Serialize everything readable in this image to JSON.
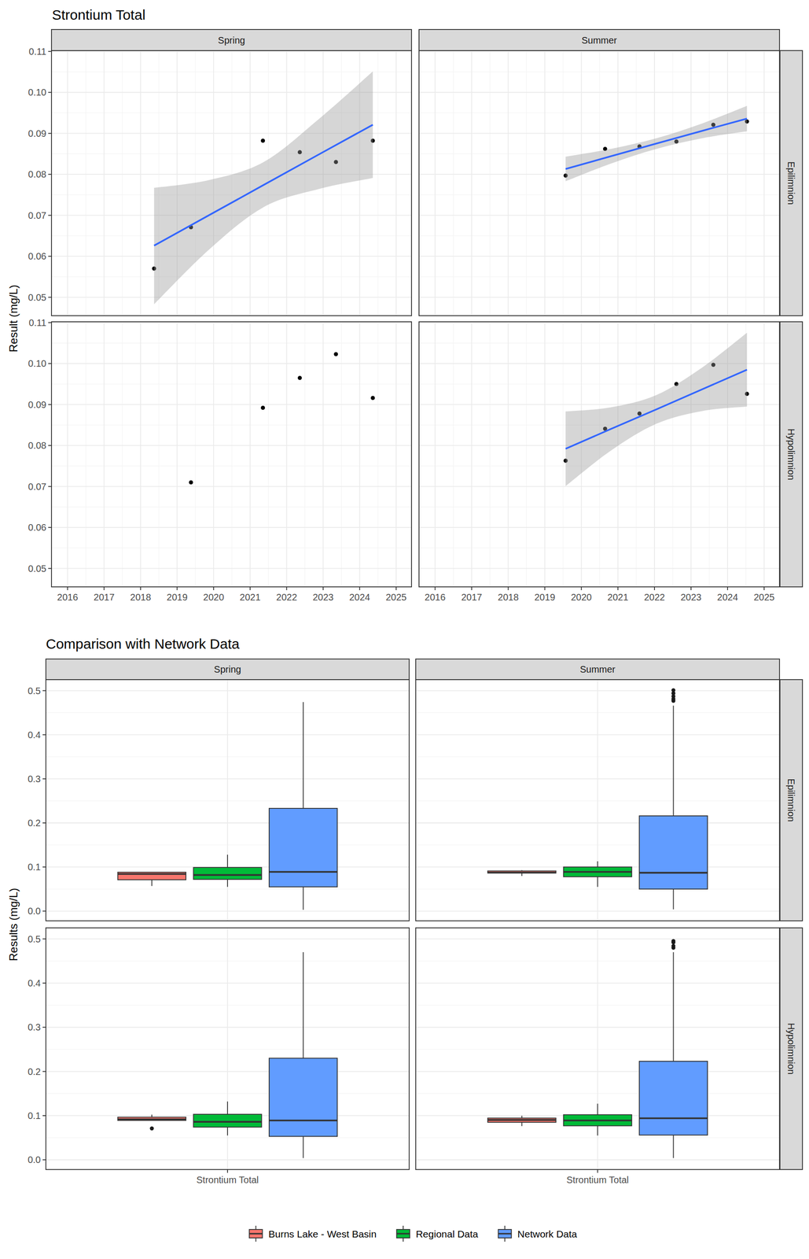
{
  "chart_data": [
    {
      "type": "scatter",
      "title": "Strontium Total",
      "y_label": "Result (mg/L)",
      "columns": [
        "Spring",
        "Summer"
      ],
      "rows": [
        "Epilimnion",
        "Hypolimnion"
      ],
      "xlim": [
        2015.56,
        2025.42
      ],
      "xticks": [
        2016,
        2017,
        2018,
        2019,
        2020,
        2021,
        2022,
        2023,
        2024,
        2025
      ],
      "ylim": [
        0.0455,
        0.1102
      ],
      "yticks": [
        0.05,
        0.06,
        0.07,
        0.08,
        0.09,
        {
          "value": 0.1,
          "label": "0.10"
        },
        0.11
      ],
      "grid": true,
      "color": "#000000",
      "marker": "circle",
      "panels": [
        [
          {
            "x": [
              2018.37,
              2019.38,
              2021.35,
              2022.36,
              2023.35,
              2024.36
            ],
            "values": [
              0.057,
              0.0671,
              0.0882,
              0.0854,
              0.083,
              0.0882
            ],
            "fit": {
              "color": "#3366FF",
              "x": [
                2018.37,
                2019.87,
                2021.37,
                2022.87,
                2024.36
              ],
              "values": [
                0.0626,
                0.07,
                0.0774,
                0.0848,
                0.0921
              ],
              "lower": [
                0.0483,
                0.0616,
                0.072,
                0.0764,
                0.0791
              ],
              "upper": [
                0.0767,
                0.0786,
                0.083,
                0.0934,
                0.1051
              ]
            }
          },
          {
            "x": [
              2019.57,
              2020.65,
              2021.59,
              2022.6,
              2023.61,
              2024.53
            ],
            "values": [
              0.0797,
              0.0862,
              0.0868,
              0.088,
              0.0921,
              0.0929
            ],
            "fit": {
              "color": "#3366FF",
              "x": [
                2019.57,
                2020.8,
                2022.05,
                2023.3,
                2024.53
              ],
              "values": [
                0.0813,
                0.0844,
                0.0875,
                0.0906,
                0.0936
              ],
              "lower": [
                0.0783,
                0.0826,
                0.0862,
                0.0888,
                0.0905
              ],
              "upper": [
                0.0843,
                0.0862,
                0.0888,
                0.0924,
                0.0967
              ]
            }
          }
        ],
        [
          {
            "x": [
              2019.38,
              2021.35,
              2022.36,
              2023.35,
              2024.36
            ],
            "values": [
              0.071,
              0.0892,
              0.0965,
              0.1023,
              0.0916
            ]
          },
          {
            "x": [
              2019.57,
              2020.65,
              2021.59,
              2022.6,
              2023.61,
              2024.53
            ],
            "values": [
              0.0763,
              0.0841,
              0.0878,
              0.095,
              0.0997,
              0.0926
            ],
            "fit": {
              "color": "#3366FF",
              "x": [
                2019.57,
                2020.8,
                2022.05,
                2023.3,
                2024.53
              ],
              "values": [
                0.0792,
                0.084,
                0.0888,
                0.0937,
                0.0985
              ],
              "lower": [
                0.0701,
                0.0787,
                0.0853,
                0.0884,
                0.0895
              ],
              "upper": [
                0.0883,
                0.0893,
                0.0923,
                0.099,
                0.1075
              ]
            }
          }
        ]
      ]
    },
    {
      "type": "box",
      "title": "Comparison with Network Data",
      "y_label": "Results (mg/L)",
      "columns": [
        "Spring",
        "Summer"
      ],
      "rows": [
        "Epilimnion",
        "Hypolimnion"
      ],
      "categories": [
        "Strontium Total"
      ],
      "ylim": [
        -0.022,
        0.525
      ],
      "yticks": [
        {
          "value": 0,
          "label": "0.0"
        },
        0.1,
        0.2,
        0.3,
        0.4,
        0.5
      ],
      "grid": true,
      "legend": "bottom",
      "series": [
        {
          "name": "Burns Lake - West Basin",
          "color": "#F8766D"
        },
        {
          "name": "Regional Data",
          "color": "#00BA38"
        },
        {
          "name": "Network Data",
          "color": "#619CFF"
        }
      ],
      "panels": [
        [
          {
            "boxes": [
              {
                "min": 0.057,
                "q1": 0.0711,
                "median": 0.0842,
                "q3": 0.0882,
                "max": 0.0882,
                "outliers": []
              },
              {
                "min": 0.055,
                "q1": 0.072,
                "median": 0.082,
                "q3": 0.099,
                "max": 0.128,
                "outliers": []
              },
              {
                "min": 0.003,
                "q1": 0.055,
                "median": 0.089,
                "q3": 0.233,
                "max": 0.474,
                "outliers": []
              }
            ]
          },
          {
            "boxes": [
              {
                "min": 0.0797,
                "q1": 0.0864,
                "median": 0.0874,
                "q3": 0.0911,
                "max": 0.0929,
                "outliers": []
              },
              {
                "min": 0.055,
                "q1": 0.078,
                "median": 0.089,
                "q3": 0.1,
                "max": 0.113,
                "outliers": []
              },
              {
                "min": 0.004,
                "q1": 0.05,
                "median": 0.087,
                "q3": 0.216,
                "max": 0.466,
                "outliers": [
                  0.477,
                  0.481,
                  0.487,
                  0.494,
                  0.501
                ]
              }
            ]
          }
        ],
        [
          {
            "boxes": [
              {
                "min": 0.0892,
                "q1": 0.0892,
                "median": 0.0916,
                "q3": 0.0965,
                "max": 0.1023,
                "outliers": [
                  0.071
                ]
              },
              {
                "min": 0.055,
                "q1": 0.074,
                "median": 0.086,
                "q3": 0.103,
                "max": 0.132,
                "outliers": []
              },
              {
                "min": 0.004,
                "q1": 0.053,
                "median": 0.089,
                "q3": 0.23,
                "max": 0.47,
                "outliers": []
              }
            ]
          },
          {
            "boxes": [
              {
                "min": 0.0763,
                "q1": 0.085,
                "median": 0.0902,
                "q3": 0.0944,
                "max": 0.0997,
                "outliers": []
              },
              {
                "min": 0.055,
                "q1": 0.077,
                "median": 0.089,
                "q3": 0.102,
                "max": 0.127,
                "outliers": []
              },
              {
                "min": 0.004,
                "q1": 0.056,
                "median": 0.094,
                "q3": 0.223,
                "max": 0.47,
                "outliers": [
                  0.48,
                  0.484,
                  0.492,
                  0.495
                ]
              }
            ]
          }
        ]
      ]
    }
  ]
}
